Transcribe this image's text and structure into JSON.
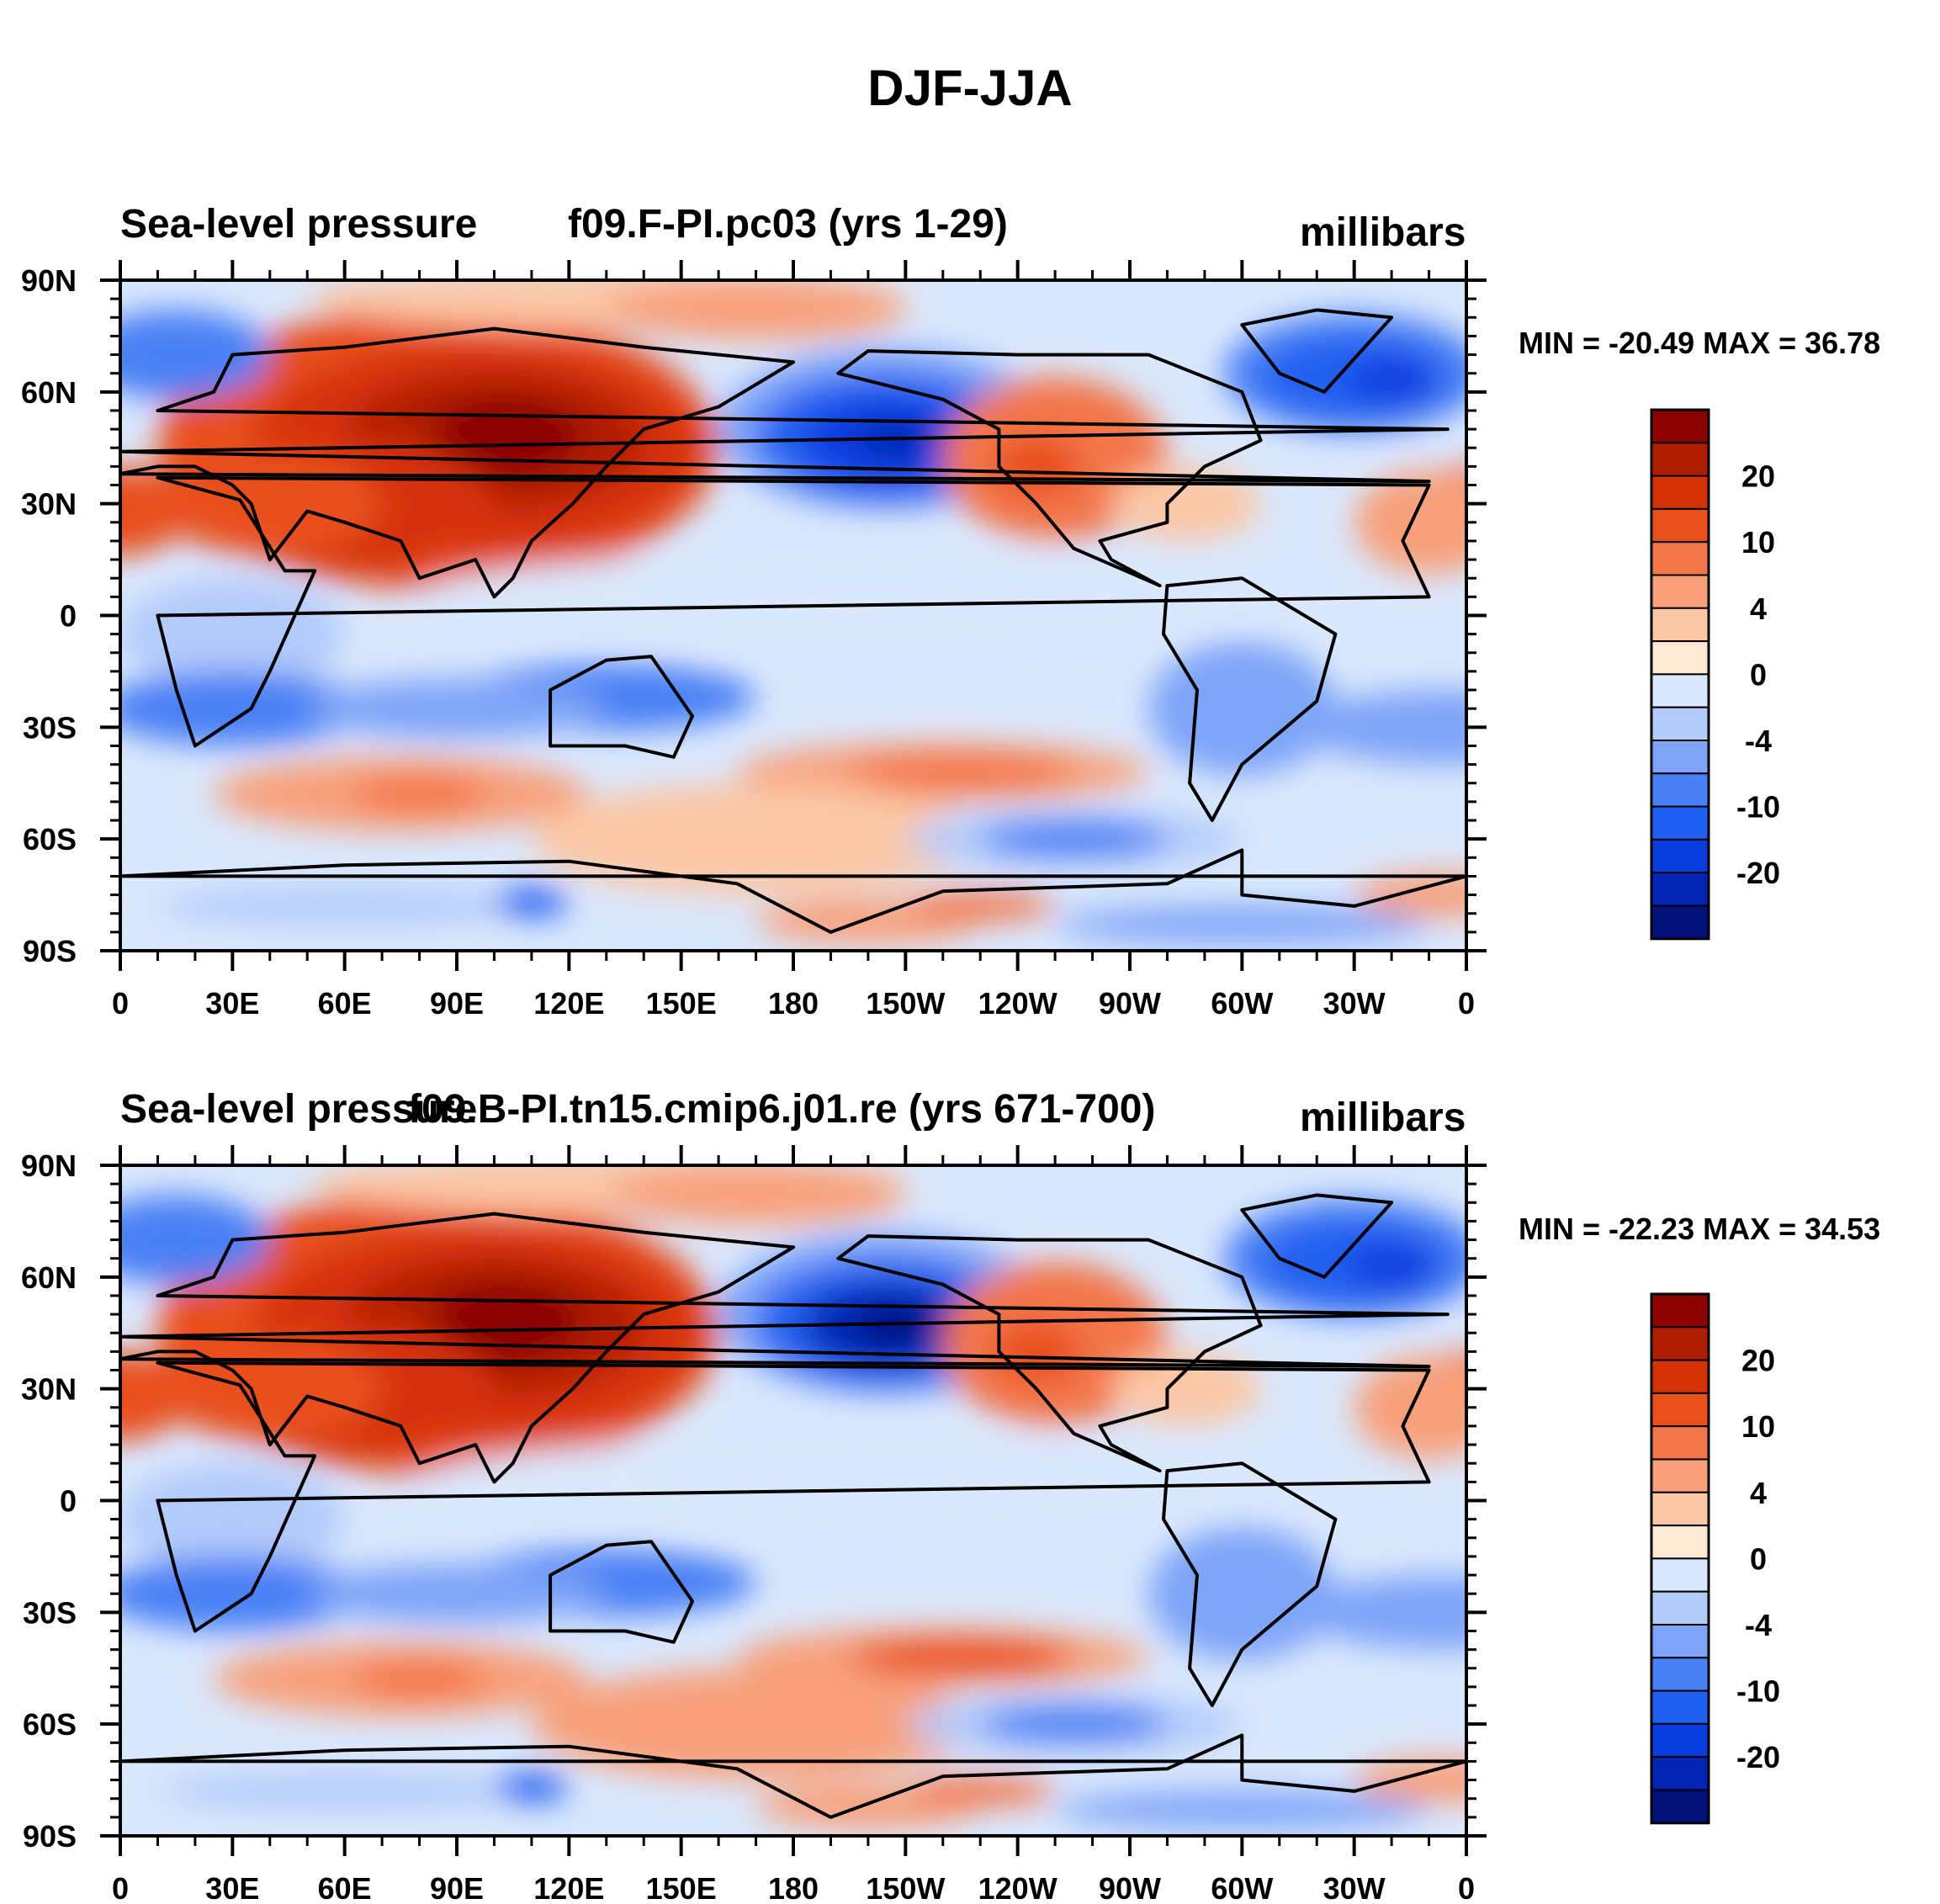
{
  "figure": {
    "title": "DJF-JJA"
  },
  "colors": {
    "levels": [
      "#00107a",
      "#0025b3",
      "#0a3de0",
      "#2060f0",
      "#4a80f5",
      "#7ea4f8",
      "#b3cbfb",
      "#dae8fd",
      "#fde8d6",
      "#fbc7a6",
      "#f8a07a",
      "#f3764a",
      "#e9501e",
      "#d53208",
      "#b01e02",
      "#8a0000"
    ],
    "land_outline": "#000000"
  },
  "colorbar": {
    "labels": [
      "20",
      "10",
      "4",
      "0",
      "-4",
      "-10",
      "-20"
    ]
  },
  "axes": {
    "lat_labels": [
      "90N",
      "60N",
      "30N",
      "0",
      "30S",
      "60S",
      "90S"
    ],
    "lon_labels": [
      "0",
      "30E",
      "60E",
      "90E",
      "120E",
      "150E",
      "180",
      "150W",
      "120W",
      "90W",
      "60W",
      "30W",
      "0"
    ]
  },
  "panels": [
    {
      "left_title": "Sea-level pressure",
      "center_title": "f09.F-PI.pc03 (yrs 1-29)",
      "units": "millibars",
      "min_max": "MIN = -20.49 MAX =  36.78"
    },
    {
      "left_title": "Sea-level pressure",
      "center_title": "f09.B-PI.tn15.cmip6.j01.re (yrs 671-700)",
      "units": "millibars",
      "min_max": "MIN = -22.23 MAX =  34.53"
    }
  ],
  "map_data": {
    "type": "filled-contour",
    "variable": "Sea-level pressure",
    "season_difference": "DJF-JJA",
    "units": "millibars",
    "contour_levels_labeled": [
      -20,
      -10,
      -4,
      0,
      4,
      10,
      20
    ],
    "features": [
      {
        "name": "Asian high",
        "lon": 100,
        "lat": 45,
        "value": 30
      },
      {
        "name": "Aleutian low",
        "lon": -155,
        "lat": 48,
        "value": -20
      },
      {
        "name": "Icelandic low",
        "lon": -30,
        "lat": 62,
        "value": -16
      },
      {
        "name": "North American high",
        "lon": -110,
        "lat": 40,
        "value": 10
      },
      {
        "name": "North Africa high",
        "lon": 0,
        "lat": 28,
        "value": 12
      },
      {
        "name": "Southern Ocean low",
        "lon": -105,
        "lat": -60,
        "value": -10
      },
      {
        "name": "South Indian high",
        "lon": 75,
        "lat": -48,
        "value": 8
      },
      {
        "name": "South Pacific high",
        "lon": -140,
        "lat": -42,
        "value": 8
      },
      {
        "name": "Australian low",
        "lon": 130,
        "lat": -25,
        "value": -10
      },
      {
        "name": "Southern Africa low",
        "lon": 25,
        "lat": -25,
        "value": -10
      }
    ]
  }
}
